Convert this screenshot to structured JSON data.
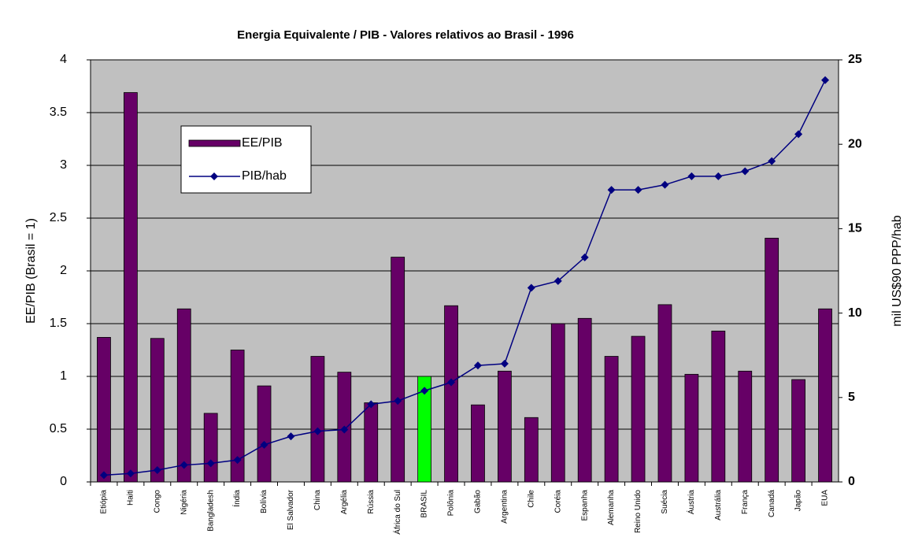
{
  "chart_data": {
    "type": "bar_line",
    "title": "Energia Equivalente / PIB - Valores relativos ao Brasil - 1996",
    "ylabel": "EE/PIB (Brasil = 1)",
    "y2label": "mil US$90 PPP/hab",
    "categories": [
      "Etiópia",
      "Haiti",
      "Congo",
      "Nigéria",
      "Bangladesh",
      "Índia",
      "Bolívia",
      "El Salvador",
      "China",
      "Argélia",
      "Rússia",
      "África do Sul",
      "BRASIL",
      "Polônia",
      "Gabão",
      "Argentina",
      "Chile",
      "Coréia",
      "Espanha",
      "Alemanha",
      "Reino Unido",
      "Suécia",
      "Áustria",
      "Austrália",
      "França",
      "Canadá",
      "Japão",
      "EUA"
    ],
    "series": [
      {
        "name": "EE/PIB",
        "type": "bar",
        "color": "#660066",
        "colors": [
          "#660066",
          "#660066",
          "#660066",
          "#660066",
          "#660066",
          "#660066",
          "#660066",
          "#660066",
          "#660066",
          "#660066",
          "#660066",
          "#660066",
          "#00ff00",
          "#660066",
          "#660066",
          "#660066",
          "#660066",
          "#660066",
          "#660066",
          "#660066",
          "#660066",
          "#660066",
          "#660066",
          "#660066",
          "#660066",
          "#660066",
          "#660066",
          "#660066"
        ],
        "values": [
          1.37,
          3.69,
          1.36,
          1.64,
          0.65,
          1.25,
          0.91,
          null,
          1.19,
          1.04,
          0.75,
          2.13,
          1.0,
          1.67,
          0.73,
          1.05,
          0.61,
          1.5,
          1.55,
          1.19,
          1.38,
          1.68,
          1.02,
          1.43,
          1.05,
          2.31,
          0.97,
          1.64
        ]
      },
      {
        "name": "PIB/hab",
        "type": "line",
        "axis": "y2",
        "color": "#000080",
        "values": [
          0.4,
          0.5,
          0.7,
          1.0,
          1.1,
          1.3,
          2.2,
          2.7,
          3.0,
          3.1,
          4.6,
          4.8,
          5.4,
          5.9,
          6.9,
          7.0,
          11.5,
          11.9,
          13.3,
          17.3,
          17.3,
          17.6,
          18.1,
          18.1,
          18.4,
          19.0,
          20.6,
          23.8
        ]
      }
    ],
    "ylim": [
      0,
      4
    ],
    "yticks": [
      0,
      0.5,
      1,
      1.5,
      2,
      2.5,
      3,
      3.5,
      4
    ],
    "y2lim": [
      0,
      25
    ],
    "y2ticks": [
      0,
      5,
      10,
      15,
      20,
      25
    ],
    "grid": true,
    "background": "#c0c0c0"
  }
}
